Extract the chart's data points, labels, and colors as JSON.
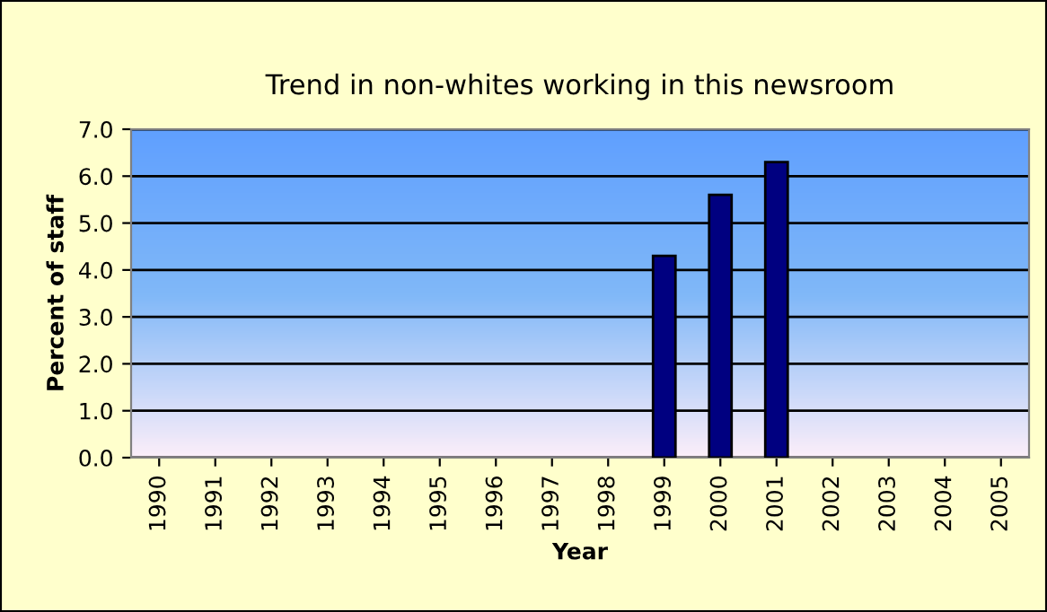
{
  "chart_data": {
    "type": "bar",
    "title": "Trend in non-whites working in this newsroom",
    "xlabel": "Year",
    "ylabel": "Percent of staff",
    "categories": [
      "1990",
      "1991",
      "1992",
      "1993",
      "1994",
      "1995",
      "1996",
      "1997",
      "1998",
      "1999",
      "2000",
      "2001",
      "2002",
      "2003",
      "2004",
      "2005"
    ],
    "values": [
      null,
      null,
      null,
      null,
      null,
      null,
      null,
      null,
      null,
      4.3,
      5.6,
      6.3,
      null,
      null,
      null,
      null
    ],
    "color": "#000080",
    "ylim": [
      0,
      7
    ],
    "yticks": [
      {
        "value": 0,
        "label": "0.0"
      },
      {
        "value": 1,
        "label": "1.0"
      },
      {
        "value": 2,
        "label": "2.0"
      },
      {
        "value": 3,
        "label": "3.0"
      },
      {
        "value": 4,
        "label": "4.0"
      },
      {
        "value": 5,
        "label": "5.0"
      },
      {
        "value": 6,
        "label": "6.0"
      },
      {
        "value": 7,
        "label": "7.0"
      }
    ],
    "grid": "y",
    "legend": false
  }
}
